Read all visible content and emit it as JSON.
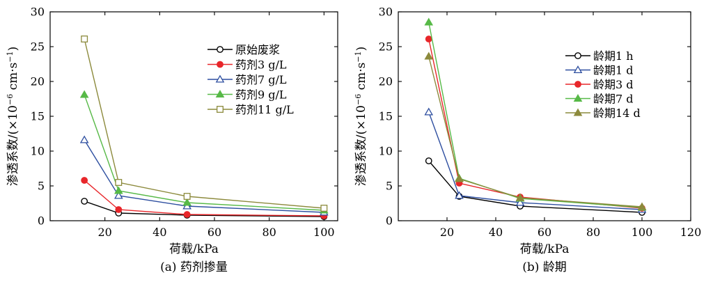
{
  "chart_data": [
    {
      "type": "line",
      "caption": "(a) 药剂掺量",
      "xlabel": "荷载/kPa",
      "ylabel_main": "渗透系数/(×10",
      "ylabel_exp1": "−6",
      "ylabel_mid": " cm·s",
      "ylabel_exp2": "−1",
      "ylabel_end": ")",
      "xlim": [
        0,
        105
      ],
      "ylim": [
        0,
        30
      ],
      "xticks": [
        20,
        40,
        60,
        80,
        100
      ],
      "yticks": [
        0,
        5,
        10,
        15,
        20,
        25,
        30
      ],
      "xtick_labels": [
        "20",
        "40",
        "60",
        "80",
        "100"
      ],
      "ytick_labels": [
        "0",
        "5",
        "10",
        "15",
        "20",
        "25",
        "30"
      ],
      "legend_position": "right",
      "x": [
        12.5,
        25,
        50,
        100
      ],
      "series": [
        {
          "name": "原始废浆",
          "values": [
            2.8,
            1.1,
            0.8,
            0.6
          ],
          "color": "#000000",
          "marker": "circle-open"
        },
        {
          "name": "药剂3 g/L",
          "values": [
            5.8,
            1.6,
            0.9,
            0.7
          ],
          "color": "#e8262a",
          "marker": "circle-filled"
        },
        {
          "name": "药剂7 g/L",
          "values": [
            11.6,
            3.6,
            2.1,
            1.2
          ],
          "color": "#2e4fa0",
          "marker": "triangle-open"
        },
        {
          "name": "药剂9 g/L",
          "values": [
            18.1,
            4.3,
            2.6,
            1.5
          ],
          "color": "#57b947",
          "marker": "triangle-filled"
        },
        {
          "name": "药剂11 g/L",
          "values": [
            26.1,
            5.5,
            3.5,
            1.8
          ],
          "color": "#8c8a3c",
          "marker": "square-open"
        }
      ]
    },
    {
      "type": "line",
      "caption": "(b) 龄期",
      "xlabel": "荷载/kPa",
      "ylabel_main": "渗透系数/(×10",
      "ylabel_exp1": "−6",
      "ylabel_mid": " cm·s",
      "ylabel_exp2": "−1",
      "ylabel_end": ")",
      "xlim": [
        0,
        120
      ],
      "ylim": [
        0,
        30
      ],
      "xticks": [
        20,
        40,
        60,
        80,
        100,
        120
      ],
      "yticks": [
        0,
        5,
        10,
        15,
        20,
        25,
        30
      ],
      "xtick_labels": [
        "20",
        "40",
        "60",
        "80",
        "100",
        "120"
      ],
      "ytick_labels": [
        "0",
        "5",
        "10",
        "15",
        "20",
        "25",
        "30"
      ],
      "legend_position": "top-right",
      "x": [
        12.5,
        25,
        50,
        100
      ],
      "series": [
        {
          "name": "龄期1 h",
          "values": [
            8.6,
            3.5,
            2.1,
            1.2
          ],
          "color": "#000000",
          "marker": "circle-open"
        },
        {
          "name": "龄期1 d",
          "values": [
            15.6,
            3.6,
            2.6,
            1.6
          ],
          "color": "#2e4fa0",
          "marker": "triangle-open"
        },
        {
          "name": "龄期3 d",
          "values": [
            26.1,
            5.4,
            3.4,
            1.8
          ],
          "color": "#e8262a",
          "marker": "circle-filled"
        },
        {
          "name": "龄期7 d",
          "values": [
            28.5,
            6.1,
            3.2,
            1.9
          ],
          "color": "#57b947",
          "marker": "triangle-filled"
        },
        {
          "name": "龄期14 d",
          "values": [
            23.6,
            6.0,
            3.3,
            2.0
          ],
          "color": "#8c8a3c",
          "marker": "triangle-filled"
        }
      ]
    }
  ]
}
